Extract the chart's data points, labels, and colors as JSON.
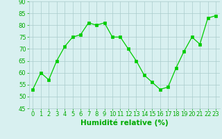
{
  "x": [
    0,
    1,
    2,
    3,
    4,
    5,
    6,
    7,
    8,
    9,
    10,
    11,
    12,
    13,
    14,
    15,
    16,
    17,
    18,
    19,
    20,
    21,
    22,
    23
  ],
  "y": [
    53,
    60,
    57,
    65,
    71,
    75,
    76,
    81,
    80,
    81,
    75,
    75,
    70,
    65,
    59,
    56,
    53,
    54,
    62,
    69,
    75,
    72,
    83,
    84
  ],
  "line_color": "#00cc00",
  "marker": "s",
  "marker_size": 2.5,
  "bg_color": "#d8f0f0",
  "grid_color": "#aacccc",
  "xlabel": "Humidité relative (%)",
  "xlabel_color": "#00aa00",
  "xlabel_fontsize": 7.5,
  "tick_color": "#00aa00",
  "tick_fontsize": 6,
  "ylim": [
    45,
    90
  ],
  "yticks": [
    45,
    50,
    55,
    60,
    65,
    70,
    75,
    80,
    85,
    90
  ],
  "xlim": [
    -0.5,
    23.5
  ]
}
